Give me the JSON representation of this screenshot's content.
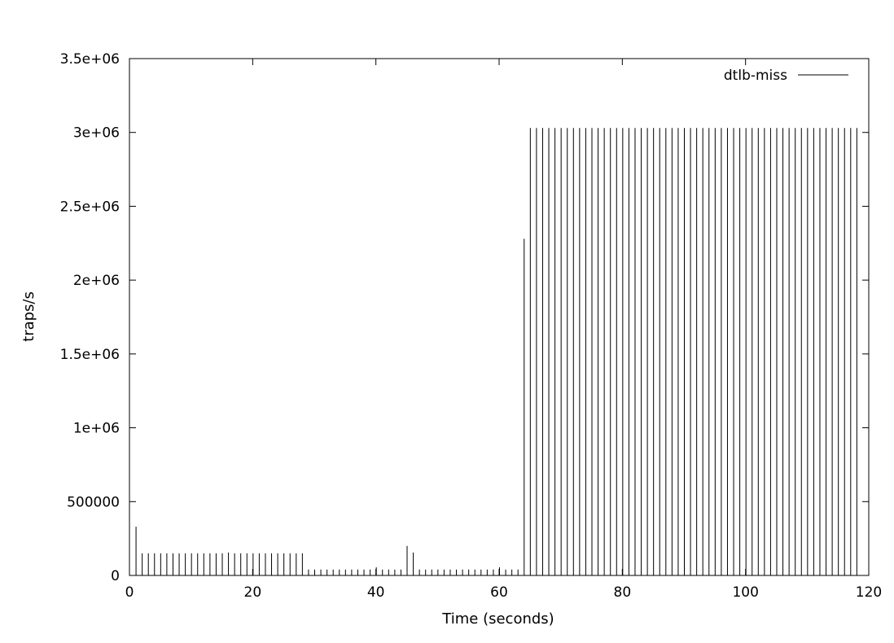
{
  "chart_data": {
    "type": "bar",
    "title": "",
    "xlabel": "Time (seconds)",
    "ylabel": "traps/s",
    "xlim": [
      0,
      120
    ],
    "ylim": [
      0,
      3500000
    ],
    "xticks": [
      0,
      20,
      40,
      60,
      80,
      100,
      120
    ],
    "xtick_labels": [
      "0",
      "20",
      "40",
      "60",
      "80",
      "100",
      "120"
    ],
    "yticks": [
      0,
      500000,
      1000000,
      1500000,
      2000000,
      2500000,
      3000000,
      3500000
    ],
    "ytick_labels": [
      "0",
      "500000",
      "1e+06",
      "1.5e+06",
      "2e+06",
      "2.5e+06",
      "3e+06",
      "3.5e+06"
    ],
    "grid": false,
    "legend_position": "top-right",
    "series": [
      {
        "name": "dtlb-miss",
        "color": "#000000",
        "style": "impulses",
        "x": [
          1,
          2,
          3,
          4,
          5,
          6,
          7,
          8,
          9,
          10,
          11,
          12,
          13,
          14,
          15,
          16,
          17,
          18,
          19,
          20,
          21,
          22,
          23,
          24,
          25,
          26,
          27,
          28,
          29,
          30,
          31,
          32,
          33,
          34,
          35,
          36,
          37,
          38,
          39,
          40,
          41,
          42,
          43,
          44,
          45,
          46,
          47,
          48,
          49,
          50,
          51,
          52,
          53,
          54,
          55,
          56,
          57,
          58,
          59,
          60,
          61,
          62,
          63,
          64,
          65,
          66,
          67,
          68,
          69,
          70,
          71,
          72,
          73,
          74,
          75,
          76,
          77,
          78,
          79,
          80,
          81,
          82,
          83,
          84,
          85,
          86,
          87,
          88,
          89,
          90,
          91,
          92,
          93,
          94,
          95,
          96,
          97,
          98,
          99,
          100,
          101,
          102,
          103,
          104,
          105,
          106,
          107,
          108,
          109,
          110,
          111,
          112,
          113,
          114,
          115,
          116,
          117,
          118
        ],
        "y": [
          330000,
          150000,
          150000,
          150000,
          150000,
          150000,
          150000,
          150000,
          150000,
          150000,
          150000,
          150000,
          150000,
          150000,
          150000,
          155000,
          150000,
          150000,
          150000,
          150000,
          150000,
          150000,
          150000,
          150000,
          150000,
          150000,
          150000,
          150000,
          40000,
          40000,
          40000,
          40000,
          40000,
          40000,
          40000,
          40000,
          40000,
          40000,
          40000,
          55000,
          40000,
          40000,
          40000,
          40000,
          200000,
          155000,
          40000,
          40000,
          40000,
          40000,
          40000,
          40000,
          40000,
          40000,
          40000,
          40000,
          40000,
          40000,
          40000,
          55000,
          40000,
          40000,
          40000,
          2280000,
          3030000,
          3030000,
          3030000,
          3030000,
          3030000,
          3030000,
          3030000,
          3030000,
          3030000,
          3030000,
          3030000,
          3030000,
          3030000,
          3030000,
          3030000,
          3030000,
          3030000,
          3030000,
          3030000,
          3030000,
          3030000,
          3030000,
          3030000,
          3030000,
          3030000,
          3030000,
          3030000,
          3030000,
          3030000,
          3030000,
          3030000,
          3030000,
          3030000,
          3030000,
          3030000,
          3030000,
          3030000,
          3030000,
          3030000,
          3030000,
          3030000,
          3030000,
          3030000,
          3030000,
          3030000,
          3030000,
          3030000,
          3030000,
          3030000,
          3030000,
          3030000,
          3030000,
          3030000,
          3030000
        ]
      }
    ]
  }
}
